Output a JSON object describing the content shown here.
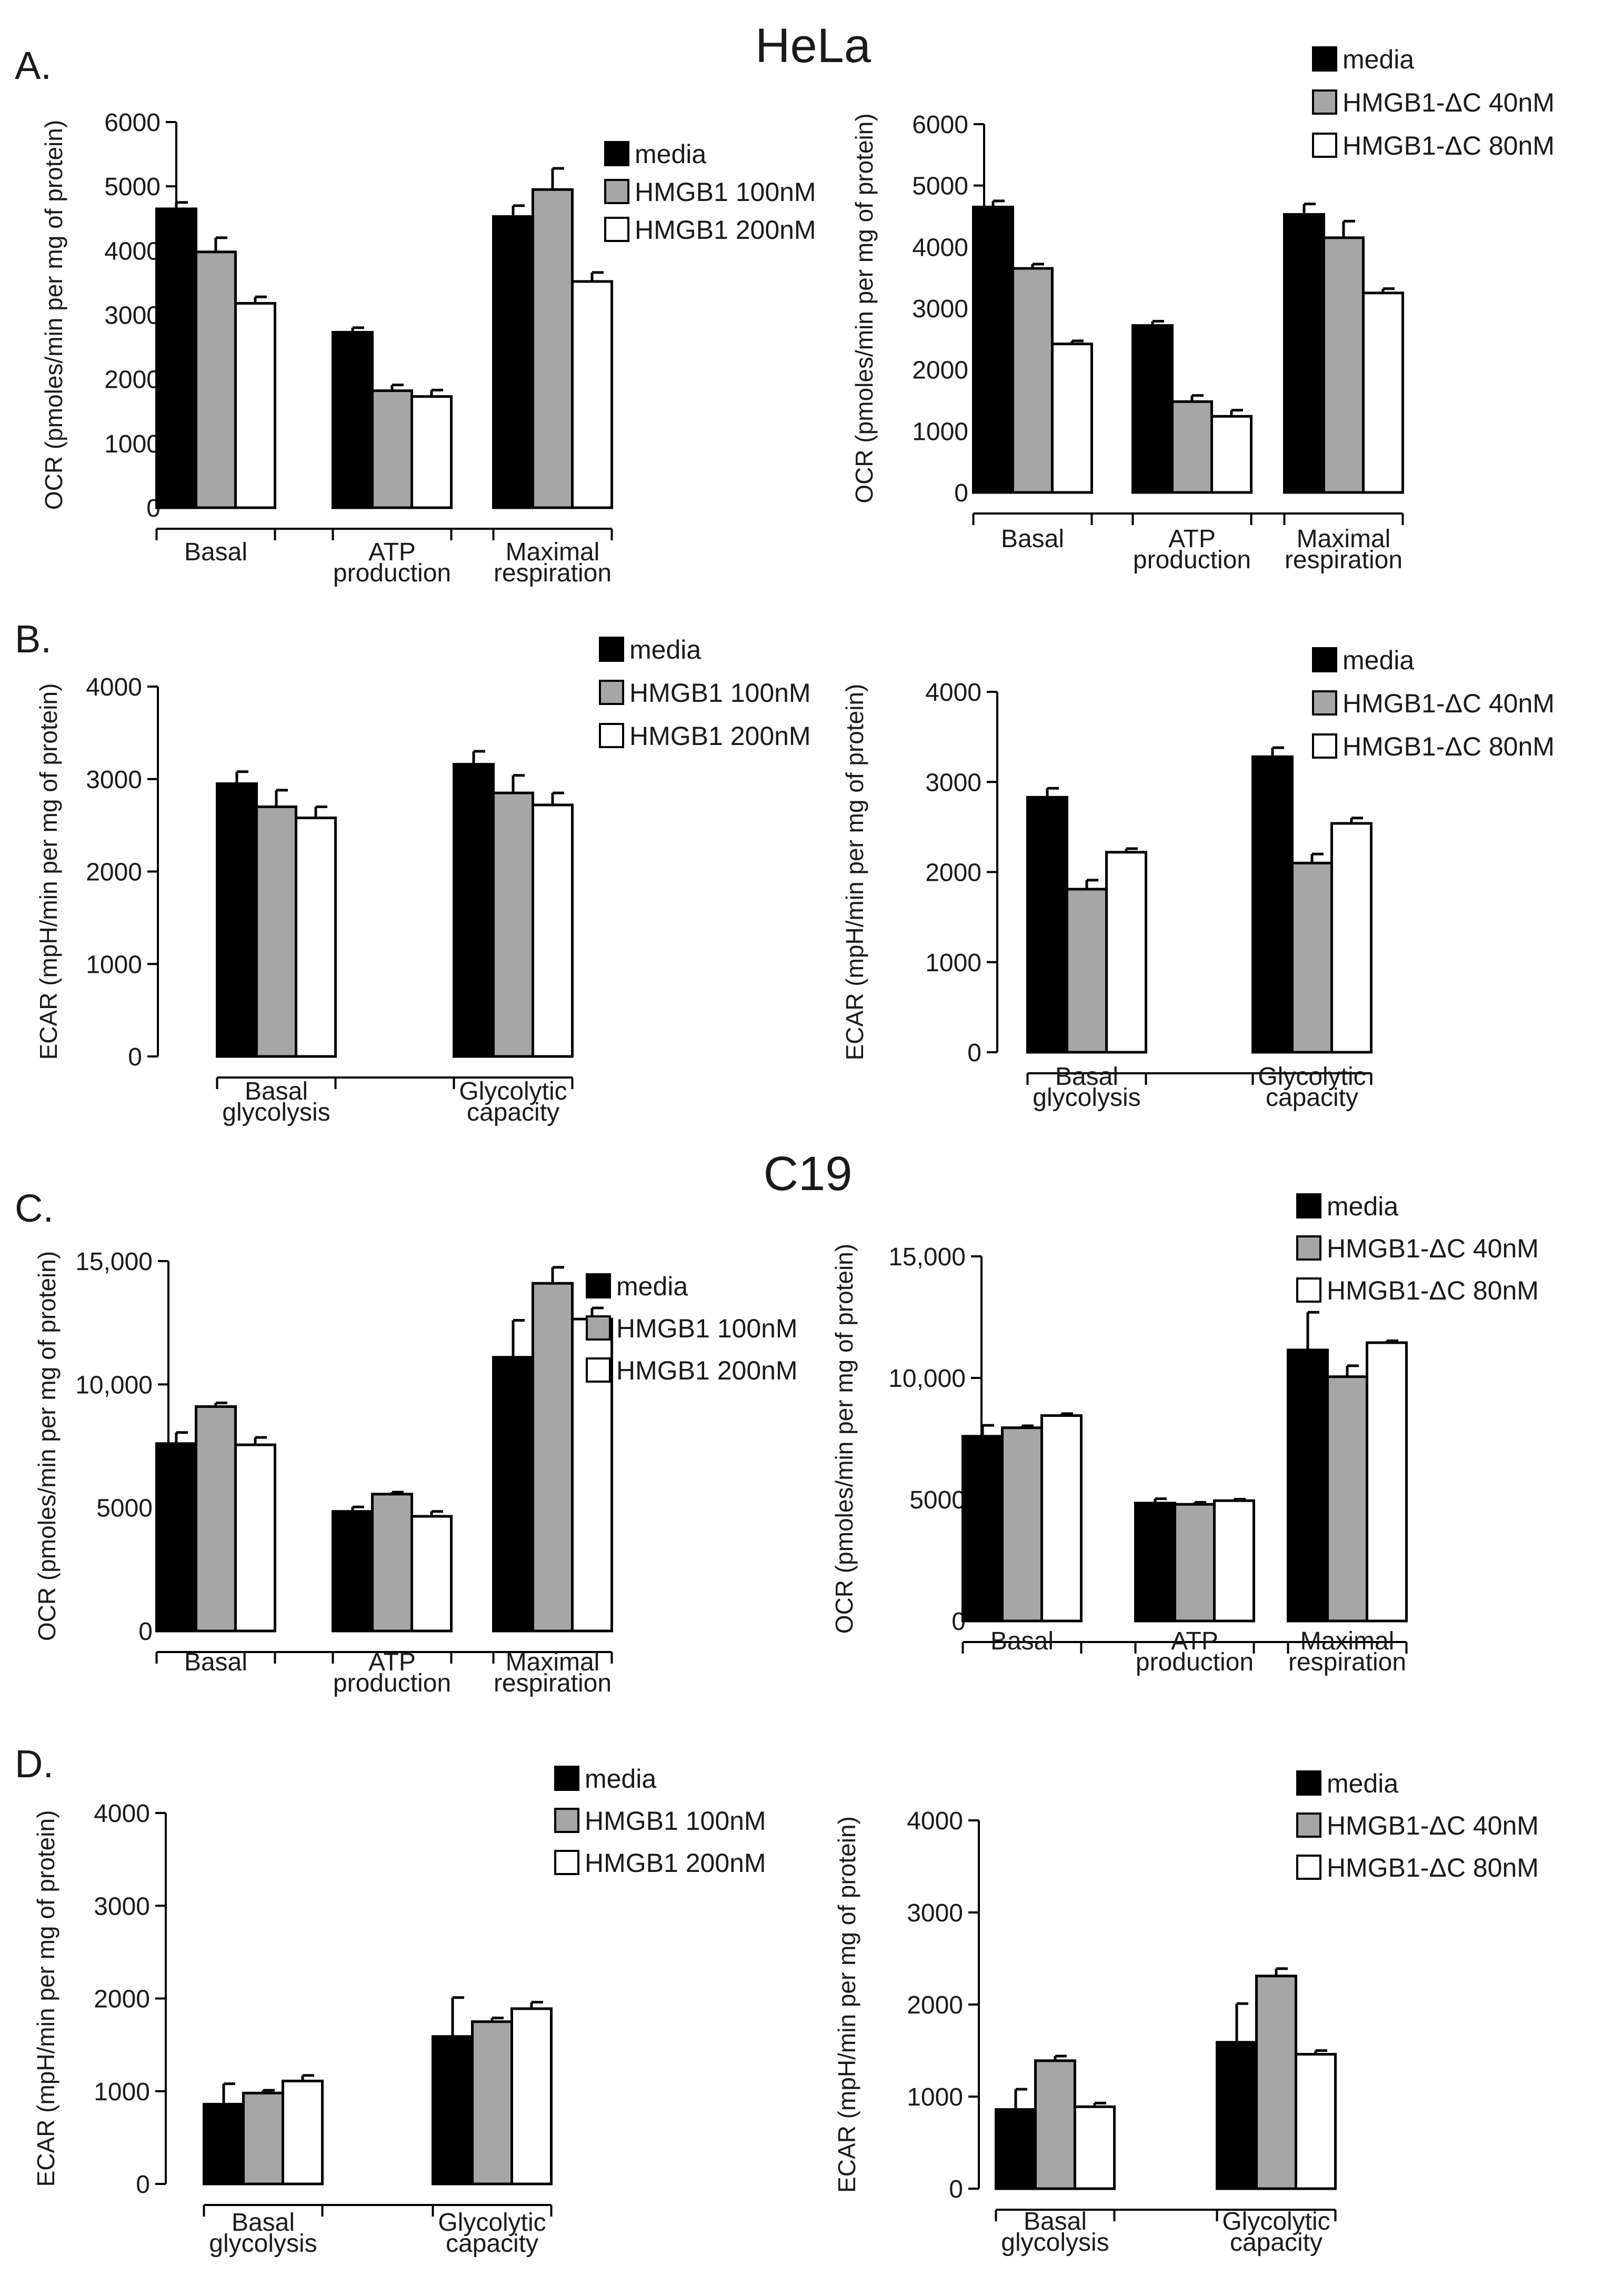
{
  "figure": {
    "title_top": "HeLa",
    "title_mid": "C19"
  },
  "colors": {
    "media": "#000000",
    "treat_low": "#a6a6a6",
    "treat_high": "#ffffff",
    "outline": "#000000"
  },
  "chart_data": [
    {
      "id": "A-left",
      "panel_label": "A.",
      "type": "bar",
      "ylabel": "OCR (pmoles/min per mg of protein)",
      "ylim": [
        0,
        6000
      ],
      "yticks": [
        "0",
        "1000",
        "2000",
        "3000",
        "4000",
        "5000",
        "6000"
      ],
      "categories": [
        [
          "Basal"
        ],
        [
          "ATP",
          "production"
        ],
        [
          "Maximal",
          "respiration"
        ]
      ],
      "series": [
        {
          "name": "media",
          "values": [
            4650,
            2730,
            4530
          ],
          "errors": [
            100,
            70,
            170
          ]
        },
        {
          "name": "HMGB1 100nM",
          "values": [
            3980,
            1820,
            4950
          ],
          "errors": [
            220,
            90,
            330
          ]
        },
        {
          "name": "HMGB1 200nM",
          "values": [
            3180,
            1730,
            3520
          ],
          "errors": [
            100,
            100,
            140
          ]
        }
      ]
    },
    {
      "id": "A-right",
      "panel_label": "",
      "type": "bar",
      "ylabel": "OCR (pmoles/min per mg of protein)",
      "ylim": [
        0,
        6000
      ],
      "yticks": [
        "0",
        "1000",
        "2000",
        "3000",
        "4000",
        "5000",
        "6000"
      ],
      "categories": [
        [
          "Basal"
        ],
        [
          "ATP",
          "production"
        ],
        [
          "Maximal",
          "respiration"
        ]
      ],
      "series": [
        {
          "name": "media",
          "values": [
            4650,
            2720,
            4530
          ],
          "errors": [
            100,
            70,
            170
          ]
        },
        {
          "name": "HMGB1-ΔC 40nM",
          "values": [
            3650,
            1480,
            4150
          ],
          "errors": [
            70,
            100,
            270
          ]
        },
        {
          "name": "HMGB1-ΔC 80nM",
          "values": [
            2420,
            1240,
            3250
          ],
          "errors": [
            50,
            100,
            70
          ]
        }
      ]
    },
    {
      "id": "B-left",
      "panel_label": "B.",
      "type": "bar",
      "ylabel": "ECAR (mpH/min per mg of protein)",
      "ylim": [
        0,
        4000
      ],
      "yticks": [
        "0",
        "1000",
        "2000",
        "3000",
        "4000"
      ],
      "categories": [
        [
          "Basal",
          "glycolysis"
        ],
        [
          "Glycolytic",
          "capacity"
        ]
      ],
      "series": [
        {
          "name": "media",
          "values": [
            2950,
            3160
          ],
          "errors": [
            130,
            140
          ]
        },
        {
          "name": "HMGB1 100nM",
          "values": [
            2700,
            2850
          ],
          "errors": [
            180,
            190
          ]
        },
        {
          "name": "HMGB1 200nM",
          "values": [
            2580,
            2720
          ],
          "errors": [
            120,
            130
          ]
        }
      ]
    },
    {
      "id": "B-right",
      "panel_label": "",
      "type": "bar",
      "ylabel": "ECAR (mpH/min per mg of protein)",
      "ylim": [
        0,
        4000
      ],
      "yticks": [
        "0",
        "1000",
        "2000",
        "3000",
        "4000"
      ],
      "categories": [
        [
          "Basal",
          "glycolysis"
        ],
        [
          "Glycolytic",
          "capacity"
        ]
      ],
      "series": [
        {
          "name": "media",
          "values": [
            2830,
            3280
          ],
          "errors": [
            100,
            100
          ]
        },
        {
          "name": "HMGB1-ΔC 40nM",
          "values": [
            1810,
            2100
          ],
          "errors": [
            100,
            100
          ]
        },
        {
          "name": "HMGB1-ΔC 80nM",
          "values": [
            2220,
            2540
          ],
          "errors": [
            40,
            60
          ]
        }
      ]
    },
    {
      "id": "C-left",
      "panel_label": "C.",
      "type": "bar",
      "ylabel": "OCR (pmoles/min per mg of protein)",
      "ylim": [
        0,
        15000
      ],
      "yticks": [
        "0",
        "5000",
        "10,000",
        "15,000"
      ],
      "categories": [
        [
          "Basal"
        ],
        [
          "ATP",
          "production"
        ],
        [
          "Maximal",
          "respiration"
        ]
      ],
      "series": [
        {
          "name": "media",
          "values": [
            7600,
            4850,
            11100
          ],
          "errors": [
            450,
            180,
            1500
          ]
        },
        {
          "name": "HMGB1 100nM",
          "values": [
            9100,
            5550,
            14100
          ],
          "errors": [
            150,
            80,
            650
          ]
        },
        {
          "name": "HMGB1 200nM",
          "values": [
            7550,
            4650,
            12650
          ],
          "errors": [
            300,
            200,
            450
          ]
        }
      ]
    },
    {
      "id": "C-right",
      "panel_label": "",
      "type": "bar",
      "ylabel": "OCR (pmoles/min per mg of protein)",
      "ylim": [
        0,
        15000
      ],
      "yticks": [
        "0",
        "5000",
        "10,000",
        "15,000"
      ],
      "categories": [
        [
          "Basal"
        ],
        [
          "ATP",
          "production"
        ],
        [
          "Maximal",
          "respiration"
        ]
      ],
      "series": [
        {
          "name": "media",
          "values": [
            7600,
            4850,
            11150
          ],
          "errors": [
            450,
            180,
            1550
          ]
        },
        {
          "name": "HMGB1-ΔC 40nM",
          "values": [
            7950,
            4800,
            10050
          ],
          "errors": [
            80,
            80,
            450
          ]
        },
        {
          "name": "HMGB1-ΔC 80nM",
          "values": [
            8450,
            4950,
            11450
          ],
          "errors": [
            80,
            60,
            80
          ]
        }
      ]
    },
    {
      "id": "D-left",
      "panel_label": "D.",
      "type": "bar",
      "ylabel": "ECAR (mpH/min per mg of protein)",
      "ylim": [
        0,
        4000
      ],
      "yticks": [
        "0",
        "1000",
        "2000",
        "3000",
        "4000"
      ],
      "categories": [
        [
          "Basal",
          "glycolysis"
        ],
        [
          "Glycolytic",
          "capacity"
        ]
      ],
      "series": [
        {
          "name": "media",
          "values": [
            860,
            1590
          ],
          "errors": [
            220,
            420
          ]
        },
        {
          "name": "HMGB1 100nM",
          "values": [
            980,
            1750
          ],
          "errors": [
            30,
            40
          ]
        },
        {
          "name": "HMGB1 200nM",
          "values": [
            1110,
            1890
          ],
          "errors": [
            60,
            70
          ]
        }
      ]
    },
    {
      "id": "D-right",
      "panel_label": "",
      "type": "bar",
      "ylabel": "ECAR (mpH/min per mg of protein)",
      "ylim": [
        0,
        4000
      ],
      "yticks": [
        "0",
        "1000",
        "2000",
        "3000",
        "4000"
      ],
      "categories": [
        [
          "Basal",
          "glycolysis"
        ],
        [
          "Glycolytic",
          "capacity"
        ]
      ],
      "series": [
        {
          "name": "media",
          "values": [
            860,
            1590
          ],
          "errors": [
            220,
            420
          ]
        },
        {
          "name": "HMGB1-ΔC 40nM",
          "values": [
            1390,
            2310
          ],
          "errors": [
            50,
            80
          ]
        },
        {
          "name": "HMGB1-ΔC 80nM",
          "values": [
            890,
            1460
          ],
          "errors": [
            40,
            40
          ]
        }
      ]
    }
  ]
}
